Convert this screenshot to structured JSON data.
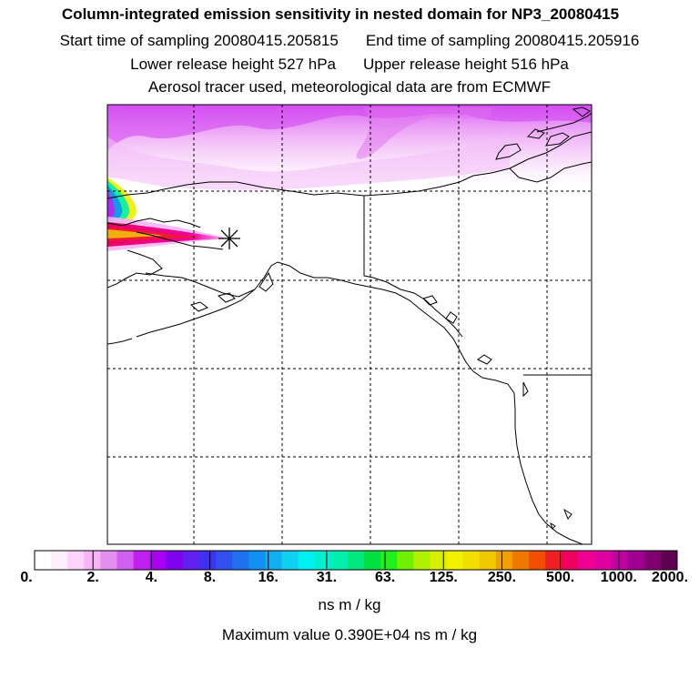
{
  "header": {
    "title": "Column-integrated emission sensitivity in nested domain for NP3_20080415",
    "start_label": "Start time of sampling 20080415.205815",
    "end_label": "End time of sampling 20080415.205916",
    "lower_label": "Lower release height  527 hPa",
    "upper_label": "Upper release height  516 hPa",
    "info_line": "Aerosol tracer used, meteorological data are from ECMWF"
  },
  "colorbar": {
    "tick_labels": [
      "0.",
      "2.",
      "4.",
      "8.",
      "16.",
      "31.",
      "63.",
      "125.",
      "250.",
      "500.",
      "1000.",
      "2000."
    ],
    "units": "ns m / kg",
    "colors": [
      "#ffffff",
      "#ffeefe",
      "#ffd4fb",
      "#f8b4f7",
      "#e38ff0",
      "#d060f0",
      "#c020f0",
      "#a800f0",
      "#8000f0",
      "#6020f0",
      "#4030f0",
      "#3050f0",
      "#2070f0",
      "#1090f0",
      "#10b0f0",
      "#10d0f0",
      "#00f0f0",
      "#00f0d0",
      "#00f0b0",
      "#00e880",
      "#00e040",
      "#20f020",
      "#70f000",
      "#b0f000",
      "#d8f000",
      "#f0f000",
      "#f0e000",
      "#f0c800",
      "#f0a000",
      "#f07800",
      "#f05000",
      "#f02020",
      "#f00060",
      "#f00090",
      "#e000a0",
      "#c000a0",
      "#a00090",
      "#800070",
      "#600050"
    ]
  },
  "footer": {
    "max_value": "Maximum value  0.390E+04 ns m / kg"
  }
}
